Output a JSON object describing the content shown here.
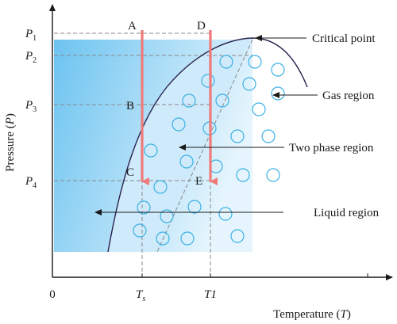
{
  "axes": {
    "x_label": "Temperature",
    "x_symbol": "T",
    "y_label": "Pressure",
    "y_symbol": "P",
    "origin": "0"
  },
  "pressure_ticks": {
    "p1": {
      "base": "P",
      "sub": "1"
    },
    "p2": {
      "base": "P",
      "sub": "2"
    },
    "p3": {
      "base": "P",
      "sub": "3"
    },
    "p4": {
      "base": "P",
      "sub": "4"
    }
  },
  "temperature_ticks": {
    "ts": {
      "base": "T",
      "sub": "s"
    },
    "t1": "T1"
  },
  "points": {
    "a": "A",
    "b": "B",
    "c": "C",
    "d": "D",
    "e": "E"
  },
  "annotations": {
    "critical_point": "Critical point",
    "gas_region": "Gas region",
    "two_phase_region": "Two phase region",
    "liquid_region": "Liquid region"
  },
  "colors": {
    "liquid_gradient_start": "#6cc3f0",
    "liquid_gradient_end": "#e6f5fd",
    "two_phase_fill": "#cfeafb",
    "bubble_stroke": "#3ab0e4",
    "process_arrow": "#f07a7a",
    "curve": "#2a2450",
    "axis": "#1a1a1a",
    "dashed_guides": "#888888"
  }
}
